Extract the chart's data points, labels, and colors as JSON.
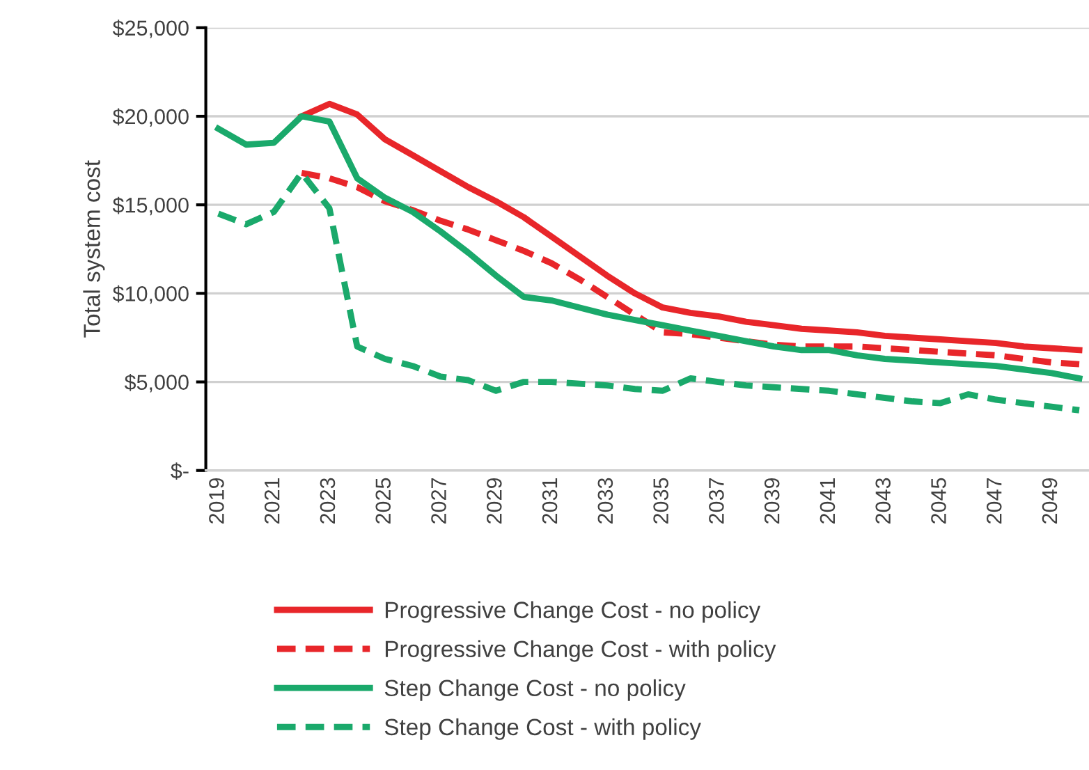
{
  "chart_data": {
    "type": "line",
    "ylabel": "Total system cost",
    "categories": [
      "2019",
      null,
      "2021",
      null,
      "2023",
      null,
      "2025",
      null,
      "2027",
      null,
      "2029",
      null,
      "2031",
      null,
      "2033",
      null,
      "2035",
      null,
      "2037",
      null,
      "2039",
      null,
      "2041",
      null,
      "2043",
      null,
      "2045",
      null,
      "2047",
      null,
      "2049",
      null
    ],
    "series": [
      {
        "name": "Progressive Change Cost - no policy",
        "color": "#e8262a",
        "line_style": "solid",
        "values": [
          null,
          null,
          null,
          20000,
          20700,
          20100,
          18700,
          17800,
          16900,
          16000,
          15200,
          14300,
          13200,
          12100,
          11000,
          10000,
          9200,
          8900,
          8700,
          8400,
          8200,
          8000,
          7900,
          7800,
          7600,
          7500,
          7400,
          7300,
          7200,
          7000,
          6900,
          6800
        ]
      },
      {
        "name": "Progressive Change Cost - with policy",
        "color": "#e8262a",
        "line_style": "dashed",
        "values": [
          null,
          null,
          null,
          16800,
          16500,
          16000,
          15200,
          14700,
          14100,
          13600,
          13000,
          12400,
          11700,
          10800,
          9800,
          8800,
          7800,
          7700,
          7500,
          7300,
          7100,
          7000,
          7000,
          7000,
          6900,
          6800,
          6700,
          6600,
          6500,
          6300,
          6100,
          6000
        ]
      },
      {
        "name": "Step Change Cost - no policy",
        "color": "#1aa96b",
        "line_style": "solid",
        "values": [
          19300,
          18400,
          18500,
          20000,
          19700,
          16500,
          15400,
          14600,
          13500,
          12300,
          11000,
          9800,
          9600,
          9200,
          8800,
          8500,
          8200,
          7900,
          7600,
          7300,
          7000,
          6800,
          6800,
          6500,
          6300,
          6200,
          6100,
          6000,
          5900,
          5700,
          5500,
          5200
        ]
      },
      {
        "name": "Step Change Cost - with policy",
        "color": "#1aa96b",
        "line_style": "dashed",
        "values": [
          14500,
          13900,
          14600,
          16800,
          14800,
          7000,
          6300,
          5900,
          5300,
          5100,
          4500,
          5000,
          5000,
          4900,
          4800,
          4600,
          4500,
          5200,
          5000,
          4800,
          4700,
          4600,
          4500,
          4300,
          4100,
          3900,
          3800,
          4300,
          4000,
          3800,
          3600,
          3400
        ]
      }
    ],
    "ylim": [
      0,
      25000
    ],
    "yticks": [
      {
        "value": 0,
        "label": "$-"
      },
      {
        "value": 5000,
        "label": "$5,000"
      },
      {
        "value": 10000,
        "label": "$10,000"
      },
      {
        "value": 15000,
        "label": "$15,000"
      },
      {
        "value": 20000,
        "label": "$20,000"
      },
      {
        "value": 25000,
        "label": "$25,000"
      }
    ],
    "grid": "y",
    "legend": "bottom",
    "marker": "none"
  }
}
